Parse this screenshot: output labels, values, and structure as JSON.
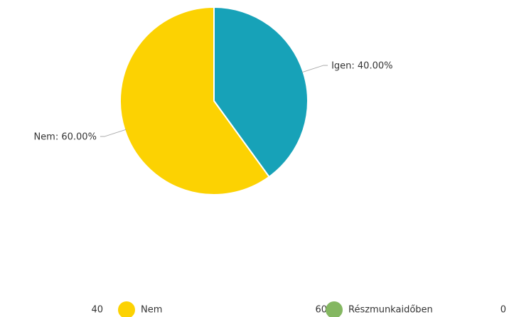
{
  "chart_data": {
    "type": "pie",
    "categories": [
      "Igen",
      "Nem"
    ],
    "values": [
      40,
      60
    ],
    "value_labels": [
      "Igen: 40.00%",
      "Nem: 60.00%"
    ],
    "colors": [
      "#17a2b8",
      "#fcd202"
    ],
    "legend": {
      "counts": [
        40,
        60,
        0
      ],
      "items": [
        {
          "name": "Nem",
          "color": "#fcd202"
        },
        {
          "name": "Részmunkaidőben",
          "color": "#84b761"
        }
      ]
    }
  }
}
